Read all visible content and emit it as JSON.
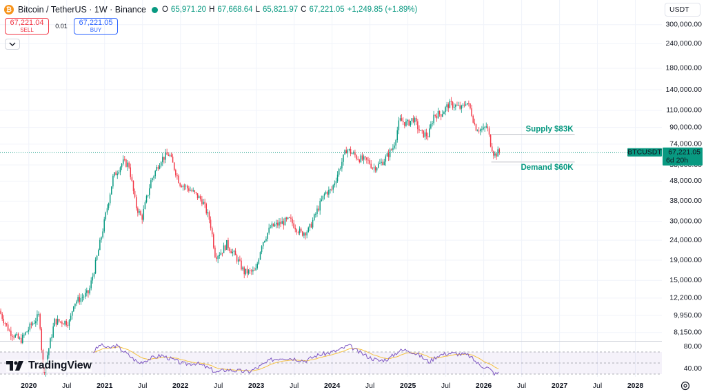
{
  "header": {
    "logo": "bitcoin-logo",
    "title": "Bitcoin / TetherUS · 1W · Binance",
    "ohlc": {
      "o_label": "O",
      "o": "65,971.20",
      "h_label": "H",
      "h": "67,668.64",
      "l_label": "L",
      "l": "65,821.97",
      "c_label": "C",
      "c": "67,221.05"
    },
    "change": "+1,249.85 (+1.89%)"
  },
  "trade": {
    "sell_price": "67,221.04",
    "sell_label": "SELL",
    "spread": "0.01",
    "buy_price": "67,221.05",
    "buy_label": "BUY"
  },
  "currency": "USDT",
  "brand": "TradingView",
  "colors": {
    "up": "#089981",
    "down": "#f23645",
    "rsi": "#7e57c2",
    "rsi_ma": "#f5c242",
    "zone": "#089981"
  },
  "price_labels": {
    "symbol": "BTCUSDT",
    "last_price": "67,221.05",
    "countdown": "6d 20h"
  },
  "chart_data": [
    {
      "type": "candlestick",
      "scale": "log",
      "ylim": [
        7500,
        330000
      ],
      "yticks": [
        "300,000.00",
        "240,000.00",
        "180,000.00",
        "140,000.00",
        "110,000.00",
        "90,000.00",
        "74,000.00",
        "58,000.00",
        "48,000.00",
        "38,000.00",
        "30,000.00",
        "24,000.00",
        "19,000.00",
        "15,000.00",
        "12,200.00",
        "9,950.00",
        "8,150.00"
      ],
      "ytick_values": [
        300000,
        240000,
        180000,
        140000,
        110000,
        90000,
        74000,
        58000,
        48000,
        38000,
        30000,
        24000,
        19000,
        15000,
        12200,
        9950,
        8150
      ],
      "x_ticks": [
        "2020",
        "Jul",
        "2021",
        "Jul",
        "2022",
        "Jul",
        "2023",
        "Jul",
        "2024",
        "Jul",
        "2025",
        "Jul",
        "2026",
        "Jul",
        "2027",
        "Jul",
        "2028"
      ],
      "x_tick_years": [
        2020,
        2020.5,
        2021,
        2021.5,
        2022,
        2022.5,
        2023,
        2023.5,
        2024,
        2024.5,
        2025,
        2025.5,
        2026,
        2026.5,
        2027,
        2027.5,
        2028
      ],
      "x_range": [
        2019.62,
        2028.35
      ],
      "series_path": [
        [
          2019.62,
          10500
        ],
        [
          2019.75,
          8300
        ],
        [
          2019.9,
          7400
        ],
        [
          2020.05,
          9000
        ],
        [
          2020.15,
          10000
        ],
        [
          2020.2,
          5000
        ],
        [
          2020.35,
          9300
        ],
        [
          2020.55,
          9200
        ],
        [
          2020.6,
          11500
        ],
        [
          2020.8,
          13000
        ],
        [
          2020.9,
          19000
        ],
        [
          2021.0,
          29000
        ],
        [
          2021.12,
          50000
        ],
        [
          2021.25,
          60000
        ],
        [
          2021.33,
          58000
        ],
        [
          2021.42,
          36000
        ],
        [
          2021.5,
          31000
        ],
        [
          2021.62,
          48000
        ],
        [
          2021.75,
          62000
        ],
        [
          2021.86,
          66000
        ],
        [
          2022.0,
          47000
        ],
        [
          2022.15,
          43000
        ],
        [
          2022.3,
          38000
        ],
        [
          2022.4,
          30000
        ],
        [
          2022.47,
          20000
        ],
        [
          2022.55,
          21000
        ],
        [
          2022.62,
          23000
        ],
        [
          2022.75,
          19500
        ],
        [
          2022.85,
          16500
        ],
        [
          2023.0,
          16600
        ],
        [
          2023.08,
          23000
        ],
        [
          2023.2,
          28000
        ],
        [
          2023.3,
          29000
        ],
        [
          2023.45,
          30500
        ],
        [
          2023.6,
          26000
        ],
        [
          2023.7,
          27000
        ],
        [
          2023.82,
          34500
        ],
        [
          2023.92,
          42000
        ],
        [
          2024.0,
          43000
        ],
        [
          2024.08,
          52000
        ],
        [
          2024.2,
          70000
        ],
        [
          2024.35,
          63000
        ],
        [
          2024.5,
          60000
        ],
        [
          2024.55,
          56000
        ],
        [
          2024.65,
          59000
        ],
        [
          2024.72,
          63000
        ],
        [
          2024.82,
          72000
        ],
        [
          2024.9,
          98000
        ],
        [
          2025.0,
          94000
        ],
        [
          2025.08,
          100000
        ],
        [
          2025.18,
          84000
        ],
        [
          2025.28,
          82000
        ],
        [
          2025.35,
          104000
        ],
        [
          2025.45,
          106000
        ],
        [
          2025.55,
          118000
        ],
        [
          2025.62,
          117000
        ],
        [
          2025.72,
          112000
        ],
        [
          2025.78,
          123000
        ],
        [
          2025.84,
          110000
        ],
        [
          2025.9,
          90000
        ],
        [
          2026.0,
          87000
        ],
        [
          2026.05,
          92000
        ],
        [
          2026.1,
          75000
        ],
        [
          2026.15,
          65000
        ],
        [
          2026.2,
          67221
        ]
      ],
      "zones": [
        {
          "label": "Supply $83K",
          "value": 83000,
          "x_from": 2026.1,
          "x_to": 2027.2
        },
        {
          "label": "Demand $60K",
          "value": 60000,
          "x_from": 2026.1,
          "x_to": 2027.2
        }
      ],
      "last_price": 67221.05
    },
    {
      "type": "line",
      "name": "",
      "ylim": [
        25,
        85
      ],
      "yticks": [
        "80.00",
        "40.00"
      ],
      "ytick_values": [
        80,
        40
      ],
      "band": [
        70,
        30
      ],
      "series_path": [
        [
          2020.85,
          70
        ],
        [
          2020.95,
          84
        ],
        [
          2021.05,
          76
        ],
        [
          2021.15,
          82
        ],
        [
          2021.3,
          66
        ],
        [
          2021.45,
          50
        ],
        [
          2021.6,
          58
        ],
        [
          2021.75,
          64
        ],
        [
          2021.9,
          56
        ],
        [
          2022.05,
          48
        ],
        [
          2022.2,
          50
        ],
        [
          2022.35,
          42
        ],
        [
          2022.48,
          33
        ],
        [
          2022.6,
          38
        ],
        [
          2022.75,
          36
        ],
        [
          2022.9,
          34
        ],
        [
          2023.05,
          44
        ],
        [
          2023.2,
          56
        ],
        [
          2023.35,
          60
        ],
        [
          2023.5,
          58
        ],
        [
          2023.65,
          54
        ],
        [
          2023.8,
          64
        ],
        [
          2023.95,
          68
        ],
        [
          2024.1,
          74
        ],
        [
          2024.22,
          82
        ],
        [
          2024.35,
          70
        ],
        [
          2024.5,
          60
        ],
        [
          2024.62,
          54
        ],
        [
          2024.75,
          58
        ],
        [
          2024.88,
          72
        ],
        [
          2025.0,
          74
        ],
        [
          2025.15,
          64
        ],
        [
          2025.28,
          52
        ],
        [
          2025.4,
          64
        ],
        [
          2025.55,
          68
        ],
        [
          2025.7,
          66
        ],
        [
          2025.8,
          64
        ],
        [
          2025.95,
          46
        ],
        [
          2026.05,
          42
        ],
        [
          2026.15,
          30
        ],
        [
          2026.2,
          32
        ]
      ]
    }
  ]
}
